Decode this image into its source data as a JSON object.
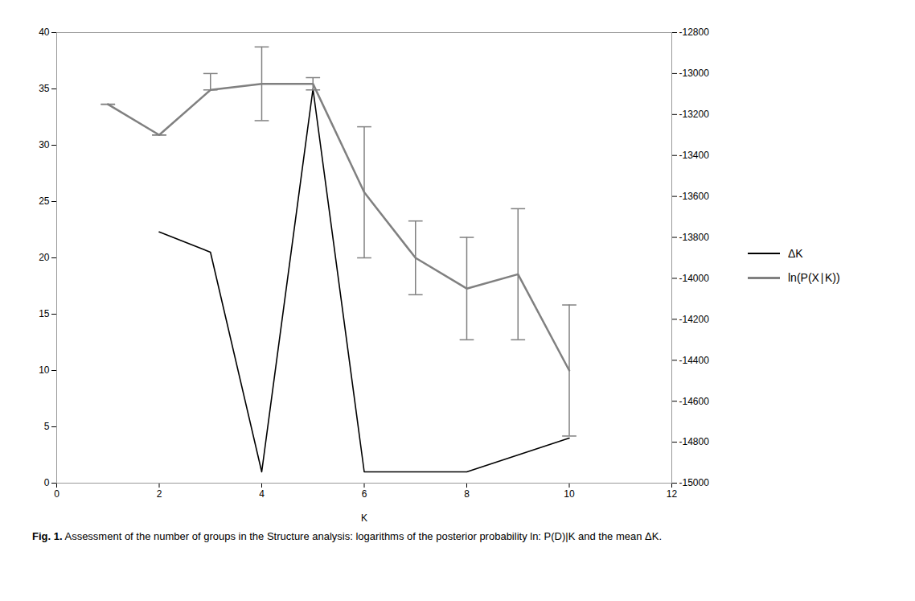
{
  "chart_data": {
    "type": "line",
    "caption_label": "Fig. 1.",
    "caption": "Assessment of the number of groups in the Structure analysis: logarithms of the posterior probability ln: P(D)|K and the mean ΔK.",
    "x": [
      1,
      2,
      3,
      4,
      5,
      6,
      7,
      8,
      9,
      10
    ],
    "xlabel": "K",
    "xlim": [
      0,
      12
    ],
    "xticks": [
      0,
      2,
      4,
      6,
      8,
      10,
      12
    ],
    "ylim": [
      0,
      40
    ],
    "yticks": [
      0,
      5,
      10,
      15,
      20,
      25,
      30,
      35,
      40
    ],
    "y2lim": [
      -15000,
      -12800
    ],
    "y2ticks": [
      -15000,
      -14800,
      -14600,
      -14400,
      -14200,
      -14000,
      -13800,
      -13600,
      -13400,
      -13200,
      -13000,
      -12800
    ],
    "legend": "right",
    "series": [
      {
        "name": "ΔK",
        "color": "#000000",
        "values": [
          null,
          22.3,
          20.5,
          1.0,
          35.0,
          1.0,
          1.0,
          1.0,
          2.5,
          4.0
        ]
      },
      {
        "name": "ln(P(X∣K))",
        "color": "#808080",
        "axis": "y2",
        "values": [
          -13150,
          -13300,
          -13080,
          -13050,
          -13050,
          -13580,
          -13900,
          -14050,
          -13980,
          -14450
        ],
        "error_upper": [
          0,
          0,
          80,
          180,
          30,
          320,
          180,
          250,
          320,
          320
        ],
        "error_lower": [
          0,
          0,
          0,
          180,
          30,
          320,
          180,
          250,
          320,
          320
        ]
      }
    ]
  }
}
